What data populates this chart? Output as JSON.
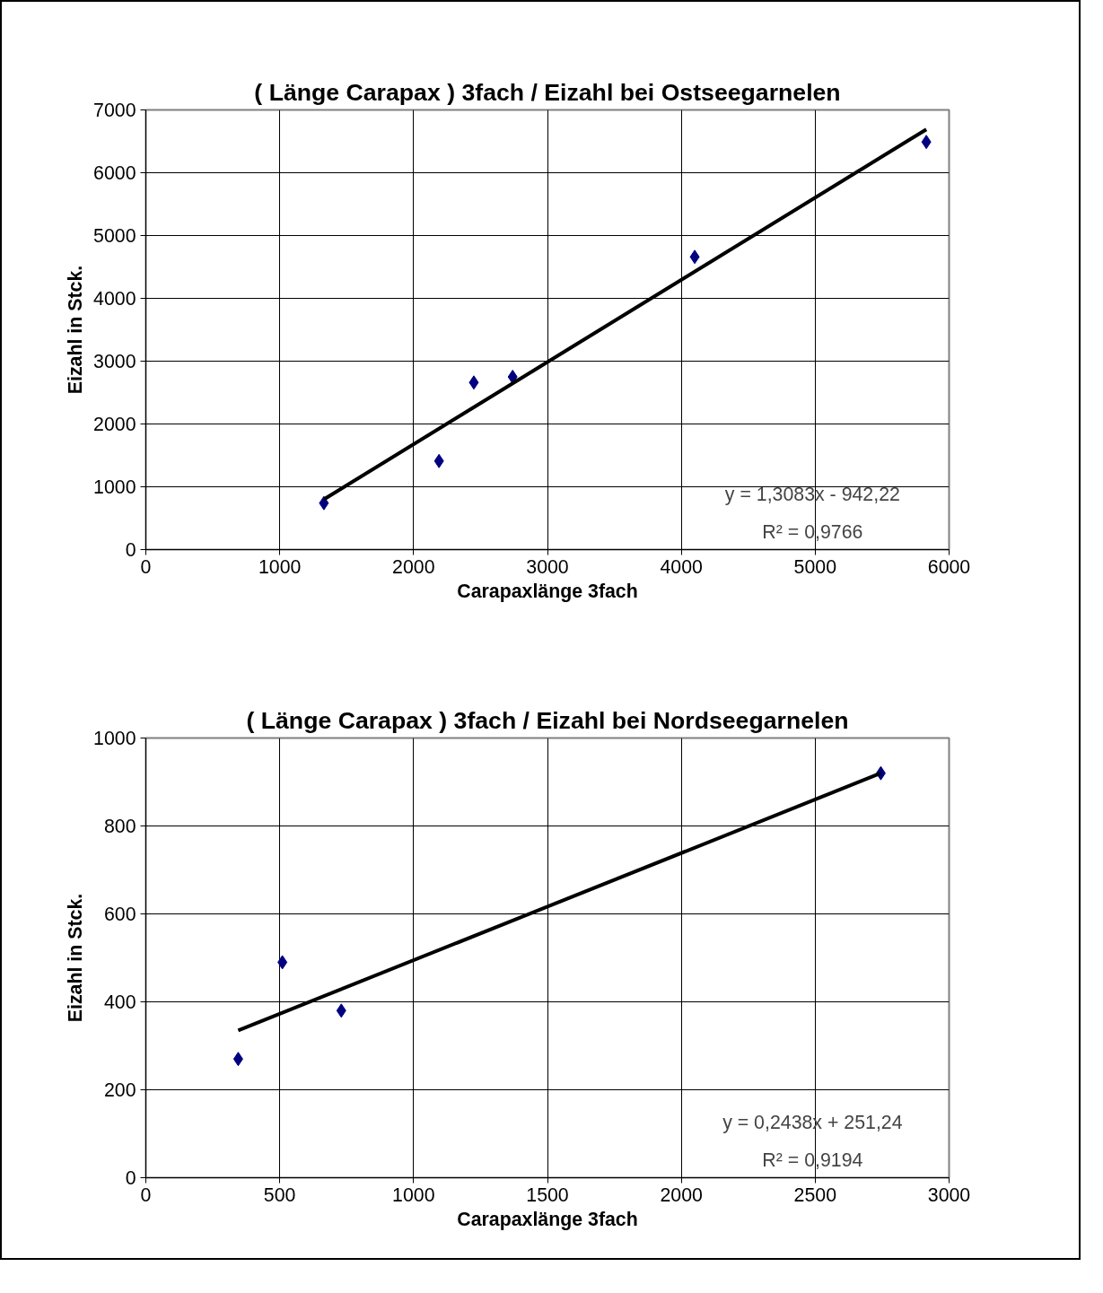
{
  "chart_data": [
    {
      "type": "scatter",
      "title": "( Länge Carapax ) 3fach / Eizahl bei Ostseegarnelen",
      "xlabel": "Carapaxlänge 3fach",
      "ylabel": "Eizahl in Stck.",
      "xlim": [
        0,
        6000
      ],
      "xticks": [
        0,
        1000,
        2000,
        3000,
        4000,
        5000,
        6000
      ],
      "ylim": [
        0,
        7000
      ],
      "yticks": [
        0,
        1000,
        2000,
        3000,
        4000,
        5000,
        6000,
        7000
      ],
      "grid": true,
      "annotations": [
        "y = 1,3083x - 942,22",
        "R² = 0,9766"
      ],
      "series": [
        {
          "marker": "diamond",
          "color": "#000080",
          "x": [
            1330,
            2190,
            2450,
            2740,
            4100,
            5830
          ],
          "values": [
            740,
            1410,
            2660,
            2750,
            4660,
            6490
          ]
        },
        {
          "type": "line",
          "marker": "none",
          "color": "#000000",
          "x": [
            1330,
            5830
          ],
          "values": [
            800,
            6690
          ]
        }
      ]
    },
    {
      "type": "scatter",
      "title": "( Länge Carapax ) 3fach / Eizahl bei Nordseegarnelen",
      "xlabel": "Carapaxlänge 3fach",
      "ylabel": "Eizahl in Stck.",
      "xlim": [
        0,
        3000
      ],
      "xticks": [
        0,
        500,
        1000,
        1500,
        2000,
        2500,
        3000
      ],
      "ylim": [
        0,
        1000
      ],
      "yticks": [
        0,
        200,
        400,
        600,
        800,
        1000
      ],
      "grid": true,
      "annotations": [
        "y = 0,2438x + 251,24",
        "R² = 0,9194"
      ],
      "series": [
        {
          "marker": "diamond",
          "color": "#000080",
          "x": [
            345,
            510,
            730,
            2745
          ],
          "values": [
            270,
            490,
            380,
            920
          ]
        },
        {
          "type": "line",
          "marker": "none",
          "color": "#000000",
          "x": [
            345,
            2745
          ],
          "values": [
            335,
            920
          ]
        }
      ]
    }
  ]
}
